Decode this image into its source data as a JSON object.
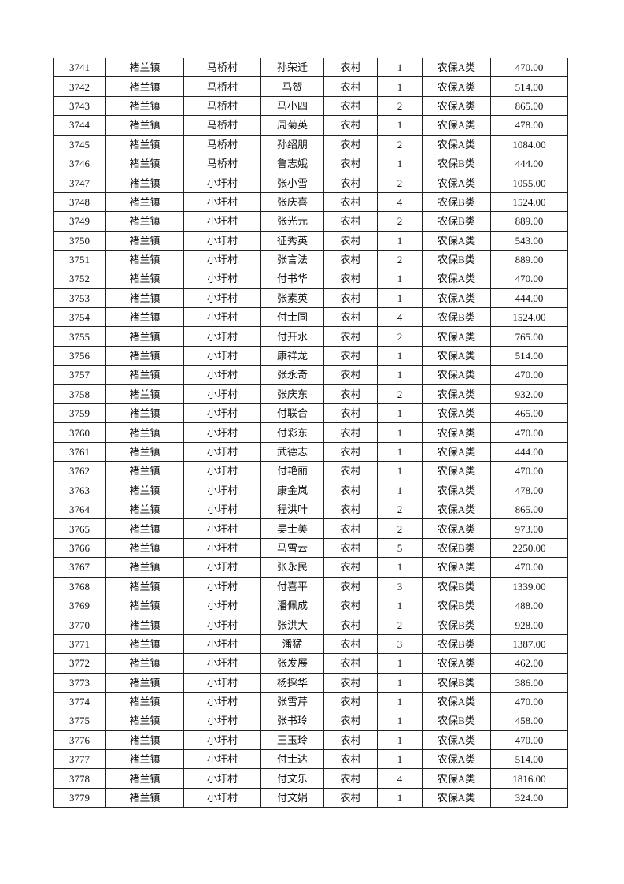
{
  "table": {
    "rows": [
      [
        "3741",
        "褚兰镇",
        "马桥村",
        "孙荣迁",
        "农村",
        "1",
        "农保A类",
        "470.00"
      ],
      [
        "3742",
        "褚兰镇",
        "马桥村",
        "马贺",
        "农村",
        "1",
        "农保A类",
        "514.00"
      ],
      [
        "3743",
        "褚兰镇",
        "马桥村",
        "马小四",
        "农村",
        "2",
        "农保A类",
        "865.00"
      ],
      [
        "3744",
        "褚兰镇",
        "马桥村",
        "周菊英",
        "农村",
        "1",
        "农保A类",
        "478.00"
      ],
      [
        "3745",
        "褚兰镇",
        "马桥村",
        "孙绍朋",
        "农村",
        "2",
        "农保A类",
        "1084.00"
      ],
      [
        "3746",
        "褚兰镇",
        "马桥村",
        "鲁志娥",
        "农村",
        "1",
        "农保B类",
        "444.00"
      ],
      [
        "3747",
        "褚兰镇",
        "小圩村",
        "张小雪",
        "农村",
        "2",
        "农保A类",
        "1055.00"
      ],
      [
        "3748",
        "褚兰镇",
        "小圩村",
        "张庆喜",
        "农村",
        "4",
        "农保B类",
        "1524.00"
      ],
      [
        "3749",
        "褚兰镇",
        "小圩村",
        "张光元",
        "农村",
        "2",
        "农保B类",
        "889.00"
      ],
      [
        "3750",
        "褚兰镇",
        "小圩村",
        "征秀英",
        "农村",
        "1",
        "农保A类",
        "543.00"
      ],
      [
        "3751",
        "褚兰镇",
        "小圩村",
        "张言法",
        "农村",
        "2",
        "农保B类",
        "889.00"
      ],
      [
        "3752",
        "褚兰镇",
        "小圩村",
        "付书华",
        "农村",
        "1",
        "农保A类",
        "470.00"
      ],
      [
        "3753",
        "褚兰镇",
        "小圩村",
        "张素英",
        "农村",
        "1",
        "农保A类",
        "444.00"
      ],
      [
        "3754",
        "褚兰镇",
        "小圩村",
        "付士同",
        "农村",
        "4",
        "农保B类",
        "1524.00"
      ],
      [
        "3755",
        "褚兰镇",
        "小圩村",
        "付开水",
        "农村",
        "2",
        "农保A类",
        "765.00"
      ],
      [
        "3756",
        "褚兰镇",
        "小圩村",
        "康祥龙",
        "农村",
        "1",
        "农保A类",
        "514.00"
      ],
      [
        "3757",
        "褚兰镇",
        "小圩村",
        "张永奇",
        "农村",
        "1",
        "农保A类",
        "470.00"
      ],
      [
        "3758",
        "褚兰镇",
        "小圩村",
        "张庆东",
        "农村",
        "2",
        "农保A类",
        "932.00"
      ],
      [
        "3759",
        "褚兰镇",
        "小圩村",
        "付联合",
        "农村",
        "1",
        "农保A类",
        "465.00"
      ],
      [
        "3760",
        "褚兰镇",
        "小圩村",
        "付彩东",
        "农村",
        "1",
        "农保A类",
        "470.00"
      ],
      [
        "3761",
        "褚兰镇",
        "小圩村",
        "武德志",
        "农村",
        "1",
        "农保A类",
        "444.00"
      ],
      [
        "3762",
        "褚兰镇",
        "小圩村",
        "付艳丽",
        "农村",
        "1",
        "农保A类",
        "470.00"
      ],
      [
        "3763",
        "褚兰镇",
        "小圩村",
        "康金岚",
        "农村",
        "1",
        "农保A类",
        "478.00"
      ],
      [
        "3764",
        "褚兰镇",
        "小圩村",
        "程洪叶",
        "农村",
        "2",
        "农保A类",
        "865.00"
      ],
      [
        "3765",
        "褚兰镇",
        "小圩村",
        "吴士美",
        "农村",
        "2",
        "农保A类",
        "973.00"
      ],
      [
        "3766",
        "褚兰镇",
        "小圩村",
        "马雪云",
        "农村",
        "5",
        "农保B类",
        "2250.00"
      ],
      [
        "3767",
        "褚兰镇",
        "小圩村",
        "张永民",
        "农村",
        "1",
        "农保A类",
        "470.00"
      ],
      [
        "3768",
        "褚兰镇",
        "小圩村",
        "付喜平",
        "农村",
        "3",
        "农保B类",
        "1339.00"
      ],
      [
        "3769",
        "褚兰镇",
        "小圩村",
        "潘佩成",
        "农村",
        "1",
        "农保B类",
        "488.00"
      ],
      [
        "3770",
        "褚兰镇",
        "小圩村",
        "张洪大",
        "农村",
        "2",
        "农保B类",
        "928.00"
      ],
      [
        "3771",
        "褚兰镇",
        "小圩村",
        "潘猛",
        "农村",
        "3",
        "农保B类",
        "1387.00"
      ],
      [
        "3772",
        "褚兰镇",
        "小圩村",
        "张发展",
        "农村",
        "1",
        "农保A类",
        "462.00"
      ],
      [
        "3773",
        "褚兰镇",
        "小圩村",
        "杨採华",
        "农村",
        "1",
        "农保B类",
        "386.00"
      ],
      [
        "3774",
        "褚兰镇",
        "小圩村",
        "张雪芹",
        "农村",
        "1",
        "农保A类",
        "470.00"
      ],
      [
        "3775",
        "褚兰镇",
        "小圩村",
        "张书玲",
        "农村",
        "1",
        "农保B类",
        "458.00"
      ],
      [
        "3776",
        "褚兰镇",
        "小圩村",
        "王玉玲",
        "农村",
        "1",
        "农保A类",
        "470.00"
      ],
      [
        "3777",
        "褚兰镇",
        "小圩村",
        "付士达",
        "农村",
        "1",
        "农保A类",
        "514.00"
      ],
      [
        "3778",
        "褚兰镇",
        "小圩村",
        "付文乐",
        "农村",
        "4",
        "农保A类",
        "1816.00"
      ],
      [
        "3779",
        "褚兰镇",
        "小圩村",
        "付文娟",
        "农村",
        "1",
        "农保A类",
        "324.00"
      ]
    ]
  }
}
